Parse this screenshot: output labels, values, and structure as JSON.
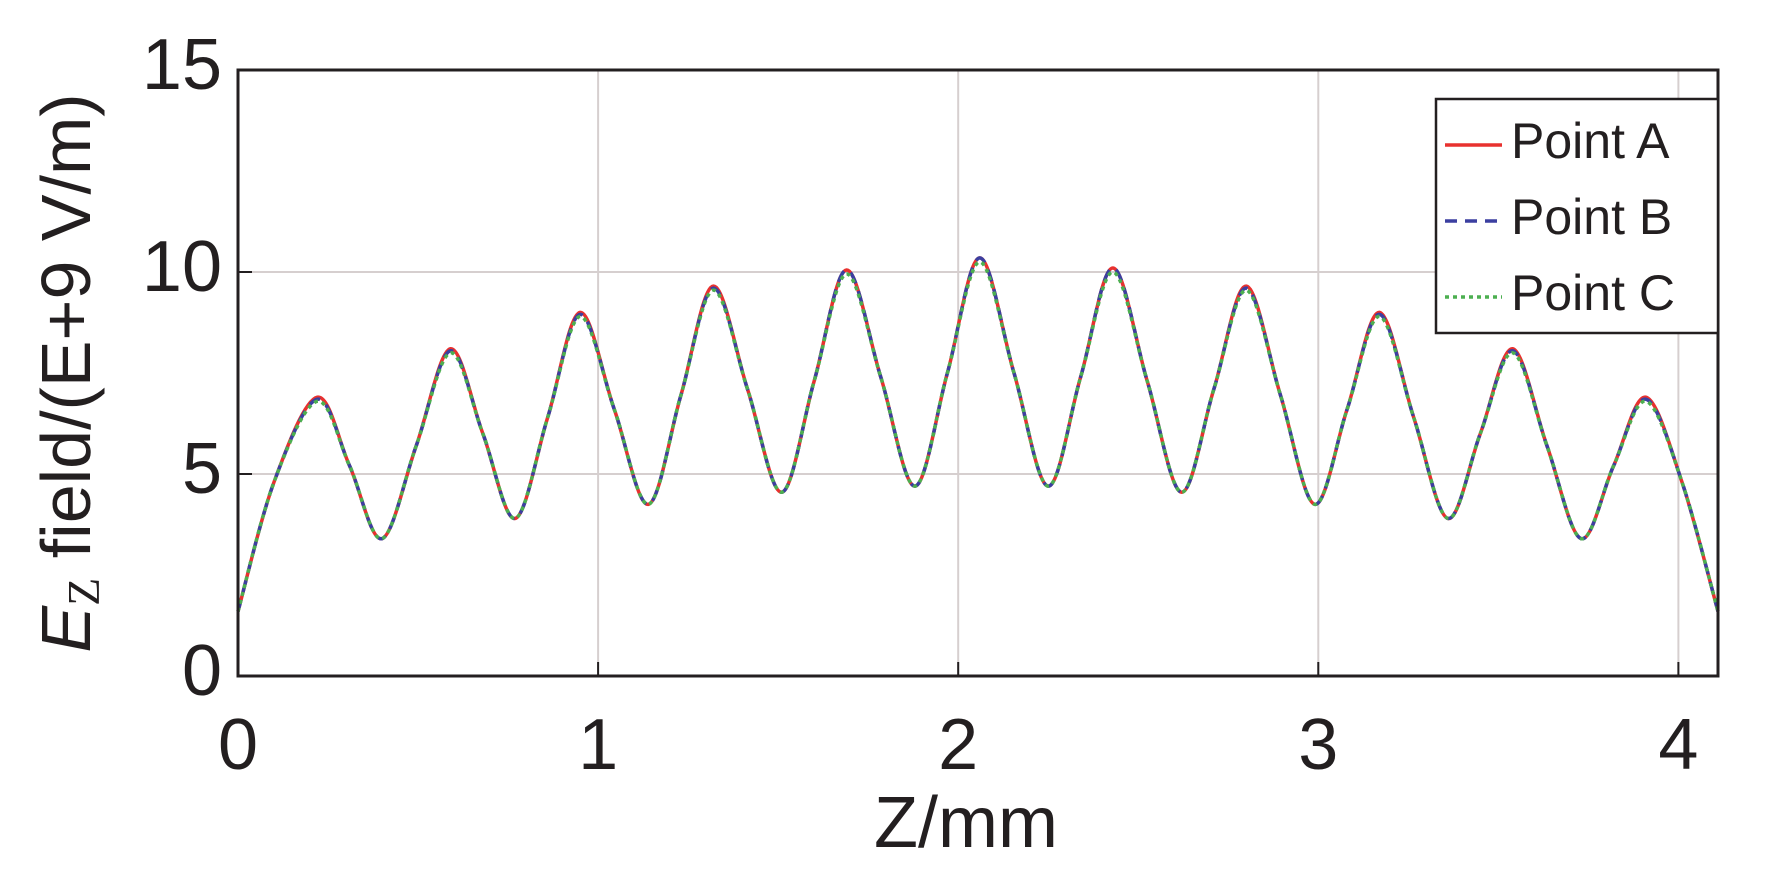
{
  "chart_data": {
    "type": "line",
    "xlabel": "Z/mm",
    "ylabel": [
      "E",
      "Z",
      " field/(E+9 V/m)"
    ],
    "x": [
      0,
      0.1,
      0.22,
      0.31,
      0.4,
      0.495,
      0.59,
      0.68,
      0.77,
      0.86,
      0.95,
      1.045,
      1.14,
      1.23,
      1.32,
      1.415,
      1.51,
      1.6,
      1.69,
      1.785,
      1.88,
      1.97,
      2.06,
      2.155,
      2.25,
      2.34,
      2.43,
      2.525,
      2.62,
      2.71,
      2.8,
      2.895,
      2.99,
      3.08,
      3.17,
      3.265,
      3.36,
      3.45,
      3.54,
      3.635,
      3.73,
      3.82,
      3.91,
      4.01,
      4.11
    ],
    "series": [
      {
        "name": "Point A",
        "color": "#e8312f",
        "style": "solid",
        "values": [
          1.6,
          4.8,
          6.9,
          5.2,
          3.4,
          5.7,
          8.1,
          6.0,
          3.9,
          6.4,
          9.0,
          6.6,
          4.25,
          6.95,
          9.65,
          7.1,
          4.55,
          7.3,
          10.05,
          7.4,
          4.7,
          7.5,
          10.35,
          7.5,
          4.7,
          7.4,
          10.1,
          7.3,
          4.55,
          7.1,
          9.65,
          6.95,
          4.25,
          6.6,
          9.0,
          6.4,
          3.9,
          6.0,
          8.1,
          5.7,
          3.4,
          5.2,
          6.9,
          4.8,
          1.6
        ]
      },
      {
        "name": "Point B",
        "color": "#3b3fa0",
        "style": "dashed",
        "values": [
          1.6,
          4.8,
          6.85,
          5.2,
          3.4,
          5.7,
          8.05,
          6.0,
          3.9,
          6.4,
          8.95,
          6.6,
          4.25,
          6.95,
          9.6,
          7.1,
          4.55,
          7.3,
          10.05,
          7.4,
          4.7,
          7.5,
          10.35,
          7.5,
          4.7,
          7.4,
          10.1,
          7.3,
          4.55,
          7.1,
          9.6,
          6.95,
          4.25,
          6.6,
          8.95,
          6.4,
          3.9,
          6.0,
          8.05,
          5.7,
          3.4,
          5.2,
          6.85,
          4.8,
          1.6
        ]
      },
      {
        "name": "Point C",
        "color": "#4caf50",
        "style": "dotted",
        "values": [
          1.6,
          4.8,
          6.8,
          5.2,
          3.4,
          5.7,
          8.0,
          6.0,
          3.9,
          6.4,
          8.9,
          6.6,
          4.25,
          6.95,
          9.55,
          7.1,
          4.55,
          7.3,
          9.95,
          7.4,
          4.7,
          7.5,
          10.25,
          7.5,
          4.7,
          7.4,
          10.0,
          7.3,
          4.55,
          7.1,
          9.55,
          6.95,
          4.25,
          6.6,
          8.9,
          6.4,
          3.9,
          6.0,
          8.0,
          5.7,
          3.4,
          5.2,
          6.8,
          4.8,
          1.6
        ]
      }
    ],
    "xlim": [
      0,
      4.11
    ],
    "ylim": [
      0,
      15
    ],
    "xticks": [
      0,
      1,
      2,
      3,
      4
    ],
    "yticks": [
      0,
      5,
      10,
      15
    ],
    "grid": true,
    "legend": "top-right"
  }
}
